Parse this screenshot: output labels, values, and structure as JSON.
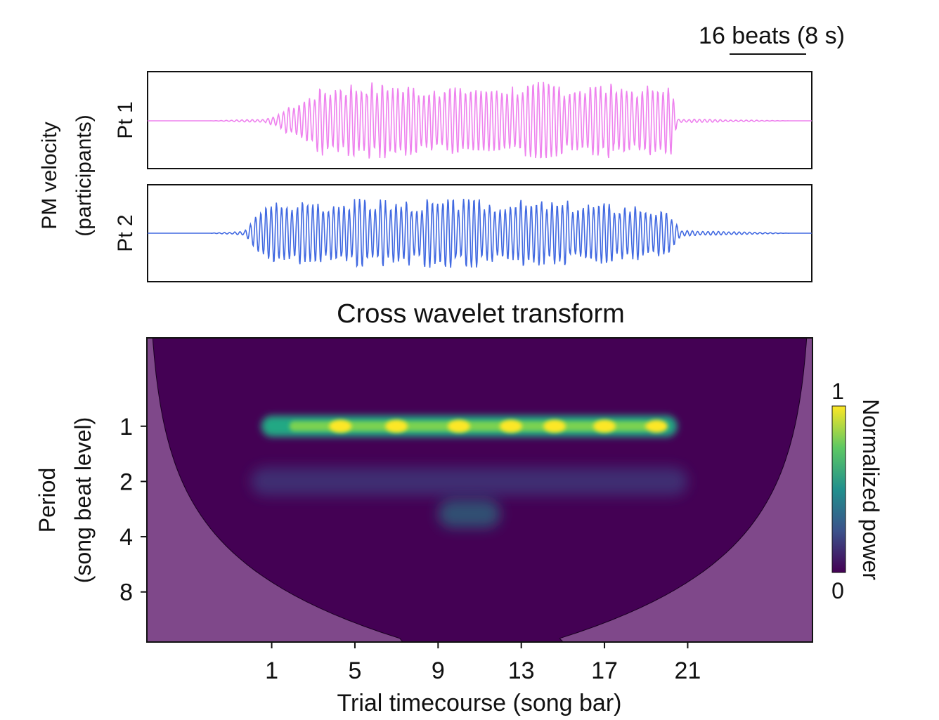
{
  "scale_bar": {
    "label": "16 beats (8 s)"
  },
  "velocity_panel": {
    "ylabel_line1": "PM velocity",
    "ylabel_line2": "(participants)"
  },
  "wavelet": {
    "title": "Cross wavelet transform",
    "ylabel_line1": "Period",
    "ylabel_line2": "(song beat level)",
    "xlabel": "Trial timecourse (song bar)",
    "colorbar": {
      "label": "Normalized power",
      "min_label": "0",
      "max_label": "1"
    }
  },
  "chart_data": [
    {
      "type": "line",
      "name": "Pt 1",
      "color": "#ee82ee",
      "y_axis": "PM velocity (participants)",
      "x_units": "song bar",
      "active_x_range": [
        0.9,
        20.3
      ],
      "oscillation_period_beats": 1,
      "envelope": {
        "x": [
          -2,
          0.8,
          1.5,
          2.5,
          3.5,
          5,
          8,
          11,
          14,
          17,
          19,
          20.2,
          20.5,
          26
        ],
        "amplitude": [
          0.0,
          0.05,
          0.25,
          0.5,
          0.85,
          0.95,
          0.9,
          0.9,
          0.95,
          0.92,
          0.88,
          0.85,
          0.05,
          0.0
        ]
      }
    },
    {
      "type": "line",
      "name": "Pt 2",
      "color": "#4169e1",
      "y_axis": "PM velocity (participants)",
      "x_units": "song bar",
      "active_x_range": [
        -0.2,
        20.8
      ],
      "oscillation_period_beats": 1,
      "envelope": {
        "x": [
          -2,
          -0.3,
          0.3,
          1.5,
          5,
          10,
          15,
          19,
          20.3,
          20.7,
          26
        ],
        "amplitude": [
          0.0,
          0.05,
          0.7,
          0.95,
          0.95,
          0.95,
          0.9,
          0.8,
          0.5,
          0.08,
          0.0
        ]
      }
    },
    {
      "type": "heatmap",
      "title": "Cross wavelet transform",
      "xlabel": "Trial timecourse (song bar)",
      "ylabel": "Period (song beat level)",
      "x_ticks": [
        1,
        5,
        9,
        13,
        17,
        21
      ],
      "xlim": [
        -5,
        27
      ],
      "y_ticks": [
        1,
        2,
        4,
        8
      ],
      "y_scale": "log2",
      "ylim": [
        0.33,
        15
      ],
      "colormap": "viridis",
      "colorbar": {
        "label": "Normalized power",
        "range": [
          0,
          1
        ]
      },
      "cone_of_influence": "shaded purple at both edges",
      "features": [
        {
          "period": 1,
          "x_range": [
            0.5,
            20.5
          ],
          "power": 0.7,
          "peaks_at_x": [
            4.3,
            7,
            10,
            12.5,
            14.6,
            17,
            19.5
          ],
          "peak_power": 1.0
        },
        {
          "period": 2,
          "x_range": [
            0,
            21
          ],
          "power": 0.1
        },
        {
          "period": 3,
          "x_range": [
            9,
            12
          ],
          "power": 0.2
        }
      ]
    }
  ]
}
